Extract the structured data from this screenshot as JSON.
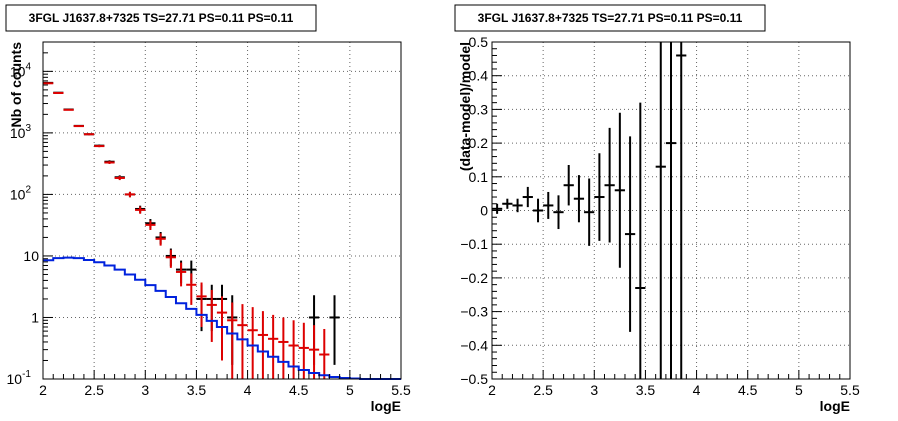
{
  "chart_data": [
    {
      "type": "scatter",
      "panel": "left",
      "title": "3FGL J1637.8+7325 TS=27.71 PS=0.11 PS=0.11",
      "xlabel": "logE",
      "ylabel": "Nb of counts",
      "xlim": [
        2,
        5.5
      ],
      "ylim": [
        0.1,
        30000
      ],
      "yscale": "log",
      "grid": true,
      "x_tick_labels": [
        "2",
        "2.5",
        "3",
        "3.5",
        "4",
        "4.5",
        "5",
        "5.5"
      ],
      "y_tick_labels": [
        "10^-1",
        "1",
        "10",
        "10^2",
        "10^3",
        "10^4"
      ],
      "bin_width": 0.1,
      "series": [
        {
          "kind": "data-points",
          "color": "#000000",
          "x": [
            2.05,
            2.15,
            2.25,
            2.35,
            2.45,
            2.55,
            2.65,
            2.75,
            2.85,
            2.95,
            3.05,
            3.15,
            3.25,
            3.35,
            3.45,
            3.55,
            3.65,
            3.75,
            3.85,
            4.65,
            4.85
          ],
          "y": [
            6500,
            4500,
            2400,
            1300,
            950,
            620,
            340,
            190,
            100,
            58,
            34,
            20,
            10,
            6,
            6,
            2,
            2,
            2,
            1,
            1,
            1
          ],
          "err_low": [
            80,
            67,
            49,
            36,
            31,
            25,
            18,
            14,
            10,
            7.6,
            5.8,
            4.5,
            3.2,
            2.4,
            2.4,
            1.4,
            1.4,
            1.4,
            0.83,
            0.83,
            0.83
          ],
          "err_high": [
            80,
            67,
            49,
            36,
            31,
            25,
            18,
            14,
            10,
            7.6,
            5.8,
            4.5,
            3.2,
            2.4,
            2.4,
            1.4,
            1.4,
            1.4,
            1.3,
            1.3,
            1.3
          ]
        },
        {
          "kind": "model-total",
          "color": "#dd0000",
          "x": [
            2.05,
            2.15,
            2.25,
            2.35,
            2.45,
            2.55,
            2.65,
            2.75,
            2.85,
            2.95,
            3.05,
            3.15,
            3.25,
            3.35,
            3.45,
            3.55,
            3.65,
            3.75,
            3.85,
            3.95,
            4.05,
            4.15,
            4.25,
            4.35,
            4.45,
            4.55,
            4.65,
            4.75
          ],
          "y": [
            6400,
            4450,
            2370,
            1290,
            950,
            610,
            330,
            185,
            100,
            56,
            32,
            19,
            9.5,
            5.5,
            3.4,
            2.2,
            1.6,
            1.2,
            0.9,
            0.75,
            0.62,
            0.52,
            0.45,
            0.4,
            0.35,
            0.32,
            0.3,
            0.25
          ],
          "err_low": [
            80,
            67,
            49,
            36,
            31,
            25,
            18,
            14,
            10,
            7.5,
            5.6,
            4.3,
            3.1,
            2.3,
            1.8,
            1.5,
            1.2,
            1.0,
            0.85,
            0.7,
            0.6,
            0.5,
            0.44,
            0.39,
            0.34,
            0.31,
            0.29,
            0.24
          ],
          "err_high": [
            80,
            67,
            49,
            36,
            31,
            25,
            18,
            14,
            10,
            7.5,
            5.6,
            4.3,
            3.1,
            2.3,
            1.8,
            1.5,
            1.2,
            1.0,
            0.85,
            0.9,
            0.85,
            0.75,
            0.65,
            0.6,
            0.55,
            0.5,
            0.45,
            0.4
          ]
        },
        {
          "kind": "source-model-step",
          "color": "#0022dd",
          "edges": [
            2.0,
            2.1,
            2.2,
            2.3,
            2.4,
            2.5,
            2.6,
            2.7,
            2.8,
            2.9,
            3.0,
            3.1,
            3.2,
            3.3,
            3.4,
            3.5,
            3.6,
            3.7,
            3.8,
            3.9,
            4.0,
            4.1,
            4.2,
            4.3,
            4.4,
            4.5,
            4.6,
            4.7,
            4.8,
            4.9,
            5.0,
            5.1,
            5.2,
            5.3,
            5.4,
            5.5
          ],
          "values": [
            8.5,
            9.2,
            9.4,
            9.2,
            8.6,
            7.9,
            7.0,
            6.0,
            5.0,
            4.1,
            3.35,
            2.7,
            2.15,
            1.7,
            1.38,
            1.1,
            0.88,
            0.7,
            0.55,
            0.44,
            0.35,
            0.28,
            0.23,
            0.19,
            0.16,
            0.14,
            0.125,
            0.115,
            0.108,
            0.104,
            0.102,
            0.1,
            0.1,
            0.1,
            0.1
          ]
        }
      ]
    },
    {
      "type": "scatter",
      "panel": "right",
      "title": "3FGL J1637.8+7325 TS=27.71 PS=0.11 PS=0.11",
      "xlabel": "logE",
      "ylabel": "(data-model)/model",
      "xlim": [
        2,
        5.5
      ],
      "ylim": [
        -0.5,
        0.5
      ],
      "grid": true,
      "x_tick_labels": [
        "2",
        "2.5",
        "3",
        "3.5",
        "4",
        "4.5",
        "5",
        "5.5"
      ],
      "y_tick_labels": [
        "−0.5",
        "−0.4",
        "−0.3",
        "−0.2",
        "−0.1",
        "0",
        "0.1",
        "0.2",
        "0.3",
        "0.4",
        "0.5"
      ],
      "bin_width": 0.1,
      "series": [
        {
          "kind": "residuals",
          "color": "#000000",
          "x": [
            2.05,
            2.15,
            2.25,
            2.35,
            2.45,
            2.55,
            2.65,
            2.75,
            2.85,
            2.95,
            3.05,
            3.15,
            3.25,
            3.35,
            3.45,
            3.65,
            3.75,
            3.85
          ],
          "y": [
            0.005,
            0.02,
            0.015,
            0.04,
            0.0,
            0.015,
            -0.005,
            0.075,
            0.035,
            -0.005,
            0.04,
            0.075,
            0.06,
            -0.07,
            -0.23,
            0.13,
            0.2,
            0.46
          ],
          "err": [
            0.015,
            0.015,
            0.02,
            0.03,
            0.035,
            0.04,
            0.05,
            0.06,
            0.07,
            0.1,
            0.13,
            0.17,
            0.23,
            0.29,
            0.55,
            1.0,
            1.0,
            1.0
          ]
        }
      ]
    }
  ]
}
